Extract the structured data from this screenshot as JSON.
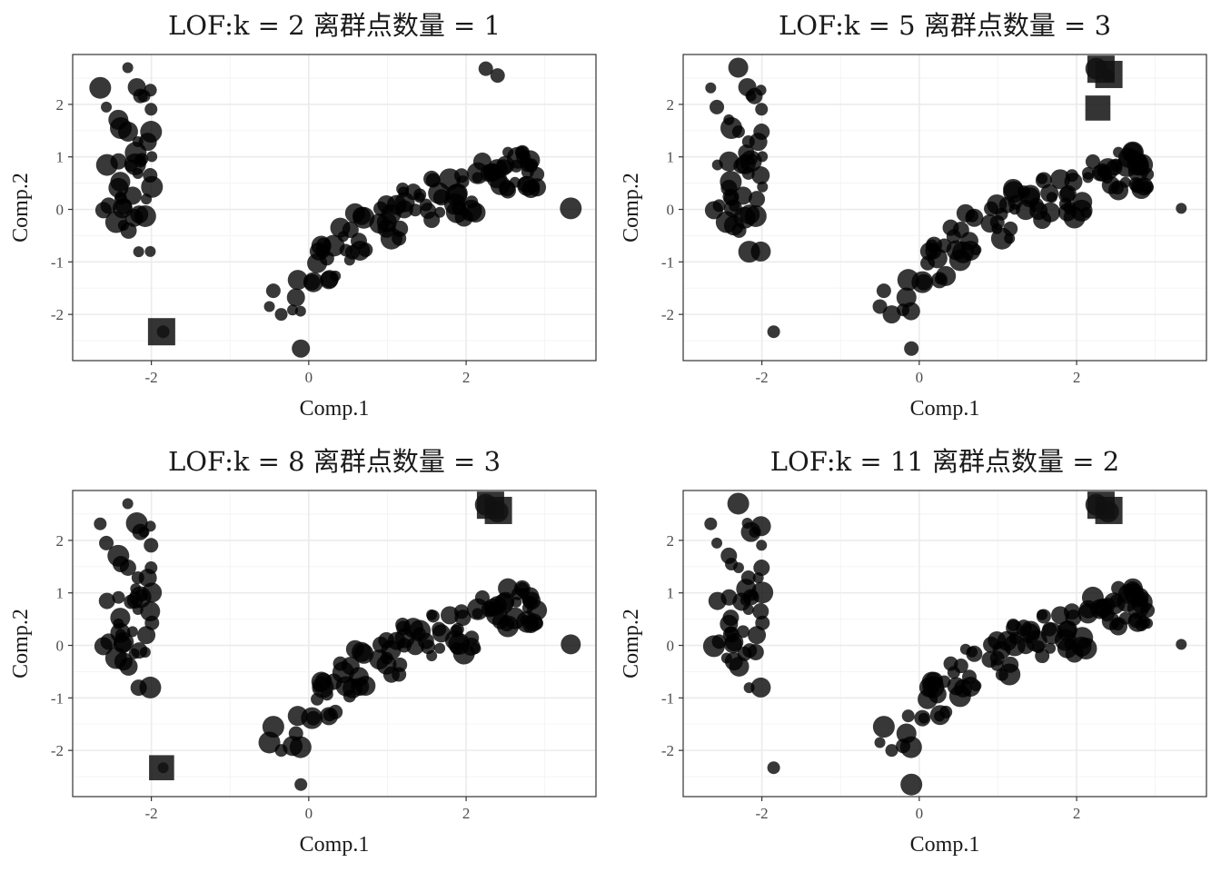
{
  "chart_data": [
    {
      "type": "scatter",
      "title": "LOF:k = 2 离群点数量 = 1",
      "xlabel": "Comp.1",
      "ylabel": "Comp.2",
      "xlim": [
        -3.0,
        3.65
      ],
      "ylim": [
        -2.88,
        2.95
      ],
      "xticks": [
        -2,
        0,
        2
      ],
      "xtick_labels": [
        "-2",
        "0",
        "2"
      ],
      "yticks": [
        -2,
        -1,
        0,
        1,
        2
      ],
      "ytick_labels": [
        "-2",
        "-1",
        "0",
        "1",
        "2"
      ],
      "grid": true,
      "point_color": "#000000",
      "outlier_marker": "square",
      "outlier_count": 1,
      "outliers": [
        {
          "x": -1.87,
          "y": -2.33,
          "size": 3
        }
      ]
    },
    {
      "type": "scatter",
      "title": "LOF:k = 5 离群点数量 = 3",
      "xlabel": "Comp.1",
      "ylabel": "Comp.2",
      "xlim": [
        -3.0,
        3.65
      ],
      "ylim": [
        -2.88,
        2.95
      ],
      "xticks": [
        -2,
        0,
        2
      ],
      "xtick_labels": [
        "-2",
        "0",
        "2"
      ],
      "yticks": [
        -2,
        -1,
        0,
        1,
        2
      ],
      "ytick_labels": [
        "-2",
        "-1",
        "0",
        "1",
        "2"
      ],
      "grid": true,
      "point_color": "#000000",
      "outlier_marker": "square",
      "outlier_count": 3,
      "outliers": [
        {
          "x": 2.31,
          "y": 2.67,
          "size": 3
        },
        {
          "x": 2.41,
          "y": 2.57,
          "size": 3
        },
        {
          "x": 2.27,
          "y": 1.93,
          "size": 2.6
        }
      ]
    },
    {
      "type": "scatter",
      "title": "LOF:k = 8 离群点数量 = 3",
      "xlabel": "Comp.1",
      "ylabel": "Comp.2",
      "xlim": [
        -3.0,
        3.65
      ],
      "ylim": [
        -2.88,
        2.95
      ],
      "xticks": [
        -2,
        0,
        2
      ],
      "xtick_labels": [
        "-2",
        "0",
        "2"
      ],
      "yticks": [
        -2,
        -1,
        0,
        1,
        2
      ],
      "ytick_labels": [
        "-2",
        "-1",
        "0",
        "1",
        "2"
      ],
      "grid": true,
      "point_color": "#000000",
      "outlier_marker": "square",
      "outlier_count": 3,
      "outliers": [
        {
          "x": 2.31,
          "y": 2.67,
          "size": 3
        },
        {
          "x": 2.41,
          "y": 2.57,
          "size": 3
        },
        {
          "x": -1.87,
          "y": -2.33,
          "size": 2.6
        }
      ]
    },
    {
      "type": "scatter",
      "title": "LOF:k = 11 离群点数量 = 2",
      "xlabel": "Comp.1",
      "ylabel": "Comp.2",
      "xlim": [
        -3.0,
        3.65
      ],
      "ylim": [
        -2.88,
        2.95
      ],
      "xticks": [
        -2,
        0,
        2
      ],
      "xtick_labels": [
        "-2",
        "0",
        "2"
      ],
      "yticks": [
        -2,
        -1,
        0,
        1,
        2
      ],
      "ytick_labels": [
        "-2",
        "-1",
        "0",
        "1",
        "2"
      ],
      "grid": true,
      "point_color": "#000000",
      "outlier_marker": "square",
      "outlier_count": 2,
      "outliers": [
        {
          "x": 2.31,
          "y": 2.67,
          "size": 3
        },
        {
          "x": 2.41,
          "y": 2.57,
          "size": 3
        }
      ]
    }
  ]
}
